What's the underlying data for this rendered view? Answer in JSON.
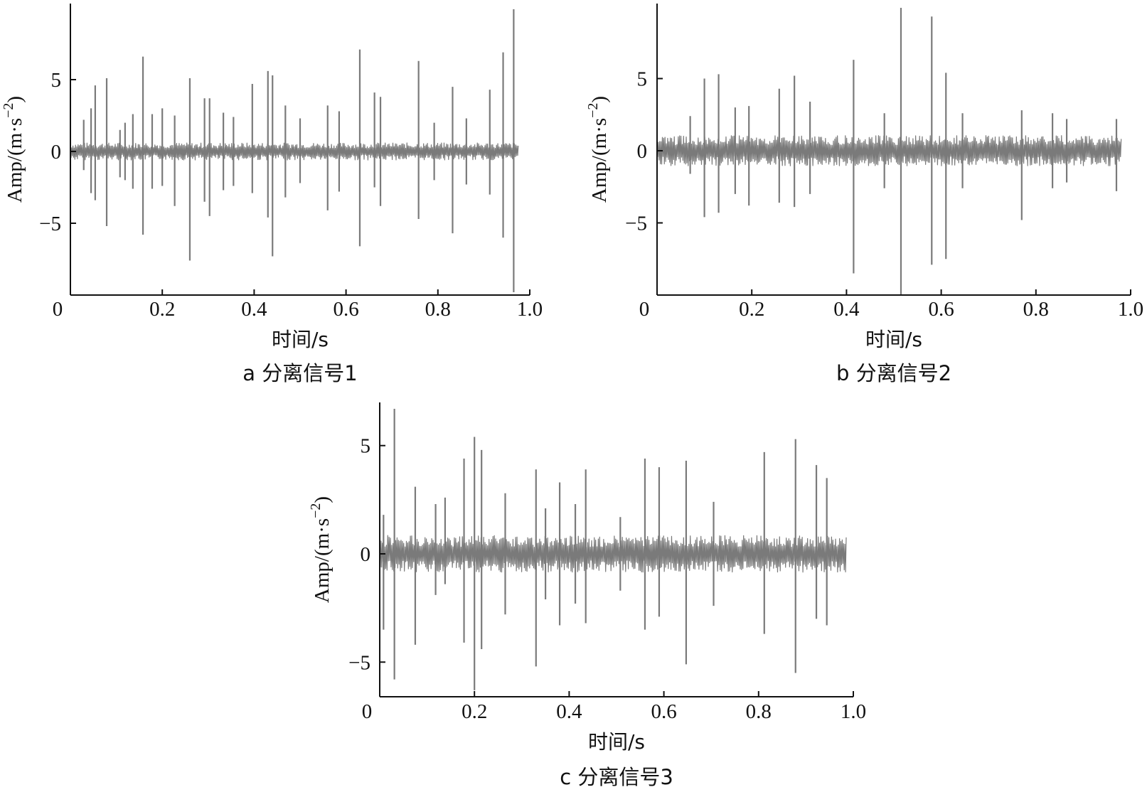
{
  "colors": {
    "signal": "#7a7a7a",
    "axis": "#111111",
    "background": "#ffffff"
  },
  "chart_data": [
    {
      "type": "line",
      "panel": "a",
      "caption": "a 分离信号1",
      "xlabel": "时间/s",
      "ylabel_main": "Amp/(m·s",
      "ylabel_sup": "−2",
      "ylabel_close": ")",
      "xlim": [
        0,
        1.0
      ],
      "ylim": [
        -10,
        10
      ],
      "xticks": [
        0,
        0.2,
        0.4,
        0.6,
        0.8,
        1.0
      ],
      "xtick_labels": [
        "0",
        "0.2",
        "0.4",
        "0.6",
        "0.8",
        "1.0"
      ],
      "yticks": [
        5,
        0,
        -5
      ],
      "ytick_labels": [
        "5",
        "0",
        "−5"
      ],
      "grid": false,
      "signal_end": 0.975,
      "noise_amplitude": 0.6,
      "spikes": [
        {
          "x": 0.029,
          "top": 2.2,
          "bottom": -1.3
        },
        {
          "x": 0.045,
          "top": 3.0,
          "bottom": -2.9
        },
        {
          "x": 0.054,
          "top": 4.6,
          "bottom": -3.4
        },
        {
          "x": 0.079,
          "top": 5.1,
          "bottom": -5.2
        },
        {
          "x": 0.108,
          "top": 1.5,
          "bottom": -1.8
        },
        {
          "x": 0.119,
          "top": 2.0,
          "bottom": -2.0
        },
        {
          "x": 0.136,
          "top": 2.6,
          "bottom": -2.6
        },
        {
          "x": 0.158,
          "top": 6.6,
          "bottom": -5.8
        },
        {
          "x": 0.178,
          "top": 2.6,
          "bottom": -2.6
        },
        {
          "x": 0.2,
          "top": 3.0,
          "bottom": -2.4
        },
        {
          "x": 0.227,
          "top": 2.5,
          "bottom": -3.8
        },
        {
          "x": 0.26,
          "top": 5.1,
          "bottom": -7.6
        },
        {
          "x": 0.292,
          "top": 3.7,
          "bottom": -3.5
        },
        {
          "x": 0.303,
          "top": 3.7,
          "bottom": -4.5
        },
        {
          "x": 0.333,
          "top": 2.7,
          "bottom": -2.7
        },
        {
          "x": 0.355,
          "top": 2.4,
          "bottom": -2.4
        },
        {
          "x": 0.396,
          "top": 4.7,
          "bottom": -2.9
        },
        {
          "x": 0.43,
          "top": 5.6,
          "bottom": -4.6
        },
        {
          "x": 0.44,
          "top": 5.3,
          "bottom": -7.3
        },
        {
          "x": 0.468,
          "top": 3.2,
          "bottom": -3.2
        },
        {
          "x": 0.5,
          "top": 2.3,
          "bottom": -2.2
        },
        {
          "x": 0.56,
          "top": 3.2,
          "bottom": -4.1
        },
        {
          "x": 0.585,
          "top": 2.8,
          "bottom": -2.8
        },
        {
          "x": 0.63,
          "top": 7.1,
          "bottom": -6.6
        },
        {
          "x": 0.662,
          "top": 4.1,
          "bottom": -2.5
        },
        {
          "x": 0.675,
          "top": 3.8,
          "bottom": -3.8
        },
        {
          "x": 0.758,
          "top": 6.3,
          "bottom": -4.7
        },
        {
          "x": 0.792,
          "top": 2.0,
          "bottom": -2.0
        },
        {
          "x": 0.832,
          "top": 4.5,
          "bottom": -5.7
        },
        {
          "x": 0.862,
          "top": 2.3,
          "bottom": -2.3
        },
        {
          "x": 0.913,
          "top": 4.3,
          "bottom": -3.0
        },
        {
          "x": 0.942,
          "top": 6.9,
          "bottom": -6.0
        },
        {
          "x": 0.965,
          "top": 9.9,
          "bottom": -9.8
        }
      ]
    },
    {
      "type": "line",
      "panel": "b",
      "caption": "b 分离信号2",
      "xlabel": "时间/s",
      "ylabel_main": "Amp/(m·s",
      "ylabel_sup": "−2",
      "ylabel_close": ")",
      "xlim": [
        0,
        1.0
      ],
      "ylim": [
        -10,
        10
      ],
      "xticks": [
        0,
        0.2,
        0.4,
        0.6,
        0.8,
        1.0
      ],
      "xtick_labels": [
        "0",
        "0.2",
        "0.4",
        "0.6",
        "0.8",
        "1.0"
      ],
      "yticks": [
        5,
        0,
        -5
      ],
      "ytick_labels": [
        "5",
        "0",
        "−5"
      ],
      "grid": false,
      "signal_end": 0.98,
      "noise_amplitude": 1.05,
      "spikes": [
        {
          "x": 0.07,
          "top": 2.4,
          "bottom": -1.6
        },
        {
          "x": 0.1,
          "top": 5.0,
          "bottom": -4.6
        },
        {
          "x": 0.13,
          "top": 5.3,
          "bottom": -4.3
        },
        {
          "x": 0.165,
          "top": 3.0,
          "bottom": -3.0
        },
        {
          "x": 0.194,
          "top": 3.1,
          "bottom": -3.8
        },
        {
          "x": 0.258,
          "top": 4.3,
          "bottom": -3.6
        },
        {
          "x": 0.29,
          "top": 5.2,
          "bottom": -3.9
        },
        {
          "x": 0.323,
          "top": 3.4,
          "bottom": -3.0
        },
        {
          "x": 0.415,
          "top": 6.3,
          "bottom": -8.5
        },
        {
          "x": 0.48,
          "top": 2.6,
          "bottom": -2.6
        },
        {
          "x": 0.515,
          "top": 9.9,
          "bottom": -10.0
        },
        {
          "x": 0.58,
          "top": 9.3,
          "bottom": -7.9
        },
        {
          "x": 0.61,
          "top": 5.4,
          "bottom": -7.5
        },
        {
          "x": 0.645,
          "top": 2.6,
          "bottom": -2.6
        },
        {
          "x": 0.77,
          "top": 2.8,
          "bottom": -4.8
        },
        {
          "x": 0.835,
          "top": 2.6,
          "bottom": -2.6
        },
        {
          "x": 0.865,
          "top": 2.2,
          "bottom": -2.2
        },
        {
          "x": 0.97,
          "top": 2.2,
          "bottom": -2.8
        }
      ]
    },
    {
      "type": "line",
      "panel": "c",
      "caption": "c 分离信号3",
      "xlabel": "时间/s",
      "ylabel_main": "Amp/(m·s",
      "ylabel_sup": "−2",
      "ylabel_close": ")",
      "xlim": [
        0,
        1.0
      ],
      "ylim": [
        -6.6,
        7.0
      ],
      "xticks": [
        0,
        0.2,
        0.4,
        0.6,
        0.8,
        1.0
      ],
      "xtick_labels": [
        "0",
        "0.2",
        "0.4",
        "0.6",
        "0.8",
        "1.0"
      ],
      "yticks": [
        5,
        0,
        -5
      ],
      "ytick_labels": [
        "5",
        "0",
        "−5"
      ],
      "grid": false,
      "signal_end": 0.985,
      "noise_amplitude": 0.85,
      "spikes": [
        {
          "x": 0.008,
          "top": 1.8,
          "bottom": -3.5
        },
        {
          "x": 0.031,
          "top": 6.7,
          "bottom": -5.8
        },
        {
          "x": 0.075,
          "top": 3.1,
          "bottom": -4.2
        },
        {
          "x": 0.118,
          "top": 2.3,
          "bottom": -1.9
        },
        {
          "x": 0.138,
          "top": 2.6,
          "bottom": -1.4
        },
        {
          "x": 0.178,
          "top": 4.4,
          "bottom": -4.1
        },
        {
          "x": 0.2,
          "top": 5.4,
          "bottom": -6.3
        },
        {
          "x": 0.215,
          "top": 4.8,
          "bottom": -4.4
        },
        {
          "x": 0.265,
          "top": 2.8,
          "bottom": -2.8
        },
        {
          "x": 0.33,
          "top": 3.9,
          "bottom": -5.2
        },
        {
          "x": 0.35,
          "top": 2.1,
          "bottom": -2.1
        },
        {
          "x": 0.38,
          "top": 3.3,
          "bottom": -3.3
        },
        {
          "x": 0.413,
          "top": 2.3,
          "bottom": -2.3
        },
        {
          "x": 0.435,
          "top": 3.9,
          "bottom": -3.2
        },
        {
          "x": 0.508,
          "top": 1.7,
          "bottom": -1.7
        },
        {
          "x": 0.56,
          "top": 4.4,
          "bottom": -3.5
        },
        {
          "x": 0.59,
          "top": 4.0,
          "bottom": -2.9
        },
        {
          "x": 0.647,
          "top": 4.3,
          "bottom": -5.1
        },
        {
          "x": 0.705,
          "top": 2.4,
          "bottom": -2.4
        },
        {
          "x": 0.812,
          "top": 4.7,
          "bottom": -3.7
        },
        {
          "x": 0.878,
          "top": 5.3,
          "bottom": -5.5
        },
        {
          "x": 0.922,
          "top": 4.1,
          "bottom": -3.0
        },
        {
          "x": 0.944,
          "top": 3.5,
          "bottom": -3.3
        }
      ]
    }
  ]
}
